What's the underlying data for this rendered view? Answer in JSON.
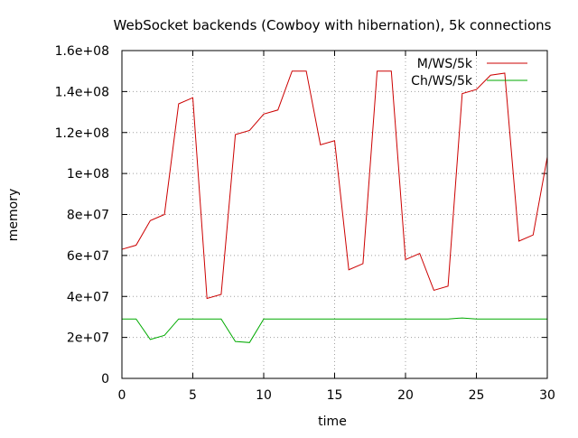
{
  "chart_data": {
    "type": "line",
    "title": "WebSocket backends (Cowboy with hibernation), 5k connections",
    "xlabel": "time",
    "ylabel": "memory",
    "xlim": [
      0,
      30
    ],
    "ylim": [
      0,
      160000000
    ],
    "grid": true,
    "legend_position": "top-right",
    "x_ticks": [
      "0",
      "5",
      "10",
      "15",
      "20",
      "25",
      "30"
    ],
    "x_tick_values": [
      0,
      5,
      10,
      15,
      20,
      25,
      30
    ],
    "y_ticks": [
      "0",
      "2e+07",
      "4e+07",
      "6e+07",
      "8e+07",
      "1e+08",
      "1.2e+08",
      "1.4e+08",
      "1.6e+08"
    ],
    "y_tick_values": [
      0,
      20000000,
      40000000,
      60000000,
      80000000,
      100000000,
      120000000,
      140000000,
      160000000
    ],
    "series": [
      {
        "name": "M/WS/5k",
        "color": "#cc0000",
        "x": [
          0,
          1,
          2,
          3,
          4,
          5,
          6,
          7,
          8,
          9,
          10,
          11,
          12,
          13,
          14,
          15,
          16,
          17,
          18,
          19,
          20,
          21,
          22,
          23,
          24,
          25,
          26,
          27,
          28,
          29,
          30
        ],
        "y": [
          63000000,
          65000000,
          77000000,
          80000000,
          134000000,
          137000000,
          39000000,
          41000000,
          119000000,
          121000000,
          129000000,
          131000000,
          150000000,
          150000000,
          114000000,
          116000000,
          53000000,
          56000000,
          150000000,
          150000000,
          58000000,
          61000000,
          43000000,
          45000000,
          139000000,
          141000000,
          148000000,
          149000000,
          67000000,
          70000000,
          108000000
        ]
      },
      {
        "name": "Ch/WS/5k",
        "color": "#00aa00",
        "x": [
          0,
          1,
          2,
          3,
          4,
          5,
          6,
          7,
          8,
          9,
          10,
          11,
          12,
          13,
          14,
          15,
          16,
          17,
          18,
          19,
          20,
          21,
          22,
          23,
          24,
          25,
          26,
          27,
          28,
          29,
          30
        ],
        "y": [
          29000000,
          29000000,
          19000000,
          21000000,
          29000000,
          29000000,
          29000000,
          29000000,
          18000000,
          17500000,
          29000000,
          29000000,
          29000000,
          29000000,
          29000000,
          29000000,
          29000000,
          29000000,
          29000000,
          29000000,
          29000000,
          29000000,
          29000000,
          29000000,
          29500000,
          29000000,
          29000000,
          29000000,
          29000000,
          29000000,
          29000000
        ]
      }
    ]
  }
}
